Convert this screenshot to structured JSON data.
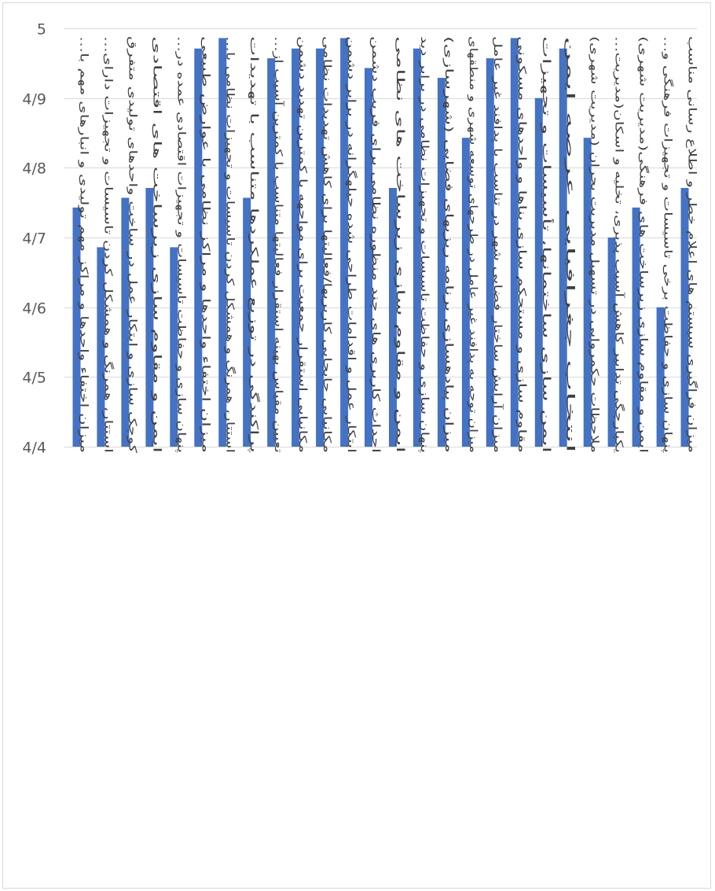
{
  "chart_data": {
    "type": "bar",
    "title": "",
    "xlabel": "",
    "ylabel": "",
    "ylim": [
      4.4,
      5.0
    ],
    "y_ticks": [
      4.4,
      4.5,
      4.6,
      4.7,
      4.8,
      4.9,
      5.0
    ],
    "y_tick_labels": [
      "4/4",
      "4/5",
      "4/6",
      "4/7",
      "4/8",
      "4/9",
      "5"
    ],
    "grid": true,
    "bar_color": "#4472C4",
    "categories": [
      "میزان اختفاء واحدها و مراکز مهم تولیدی و انبارهای مهم با…",
      "استتار، همرنگ و همشکل کردن تاسیسات و تجهیزات دارای…",
      "کوچک سازی و ابتکار عمل در ساخت واحدهای تولیدی متفرق",
      "ایمن و مقاوم سازی زیرساخت های اقتصادی",
      "پنهان سازی و حفاظت تاسیسات و تجهیزات اقتصادی عمده در…",
      "میزان اختفاء واحدها و مراکز نظامی با عوارض طبیعی",
      "استتار، همرنگ و همشکل کردن تاسیسات و تجهیزات نظامی با…",
      "پراکندگی در توزیع عملکردها متناسب با تهدیدات",
      "تعیین مقیاس بهینه استقرار فعالیتها متناسب با کمترین آسیب از…",
      "مکانیابی استقرار جمعیت برای مواجهه با کمترین تهدید دشمن",
      "مکانیابی جابجایی کاربریها/فعالیتها برای کاهش تهدیدات نظامی",
      "ابتکار عمل و اقدامات طراحی شده حیلهگرانه در برابر دشمن",
      "احداث کاربری های چند منظوره نظامی برای فریب دشمن",
      "ایمن و مقاوم سازی زیرساخت های نظامی",
      "پنهان سازی و حفاظت تاسیسات و تجهیزات نظامی در برابر دید",
      "میزان پیادهسازی برنامه ریزیهای فضایی (شهرسازی)",
      "میزان توجه به پدافند غیر عامل در طرحهای توسعه شهری و منطقهای",
      "میزان آرایش ساختار فضایی شهر در تناسب با پدافند غیر عامل",
      "مقاوم سازی و مستحکم سازی بناها و واحدهای مسکونی",
      "ایمن سازی ساختمانها، تأسیسات و تجهیزات",
      "انتخاب جغرافیایی عرصه ایمن",
      "ملاحظات حکمروایی در تسهیل مدیریت بحران (مدیریت شهری)",
      "یکپارچگی تدابیر کاهش آسیب پذیری، تخلیه و اسکان(مدیریت…",
      "ایمن و مقاوم سازی زیرساخت های فرهنگی(مدیریت شهری)",
      "پنهان سازی و حفاظت برخی تاسیسات و تجهیزات فرهنگی و…",
      "میزان فراگیری سیستم های اعلام خطر و اطلاع رسانی مناسب"
    ],
    "values": [
      4.743,
      4.686,
      4.757,
      4.771,
      4.686,
      4.971,
      4.986,
      4.757,
      4.957,
      4.971,
      4.971,
      4.986,
      4.943,
      4.771,
      4.971,
      4.929,
      4.843,
      4.957,
      4.986,
      4.9,
      4.971,
      4.843,
      4.7,
      4.743,
      4.6,
      4.771
    ]
  }
}
